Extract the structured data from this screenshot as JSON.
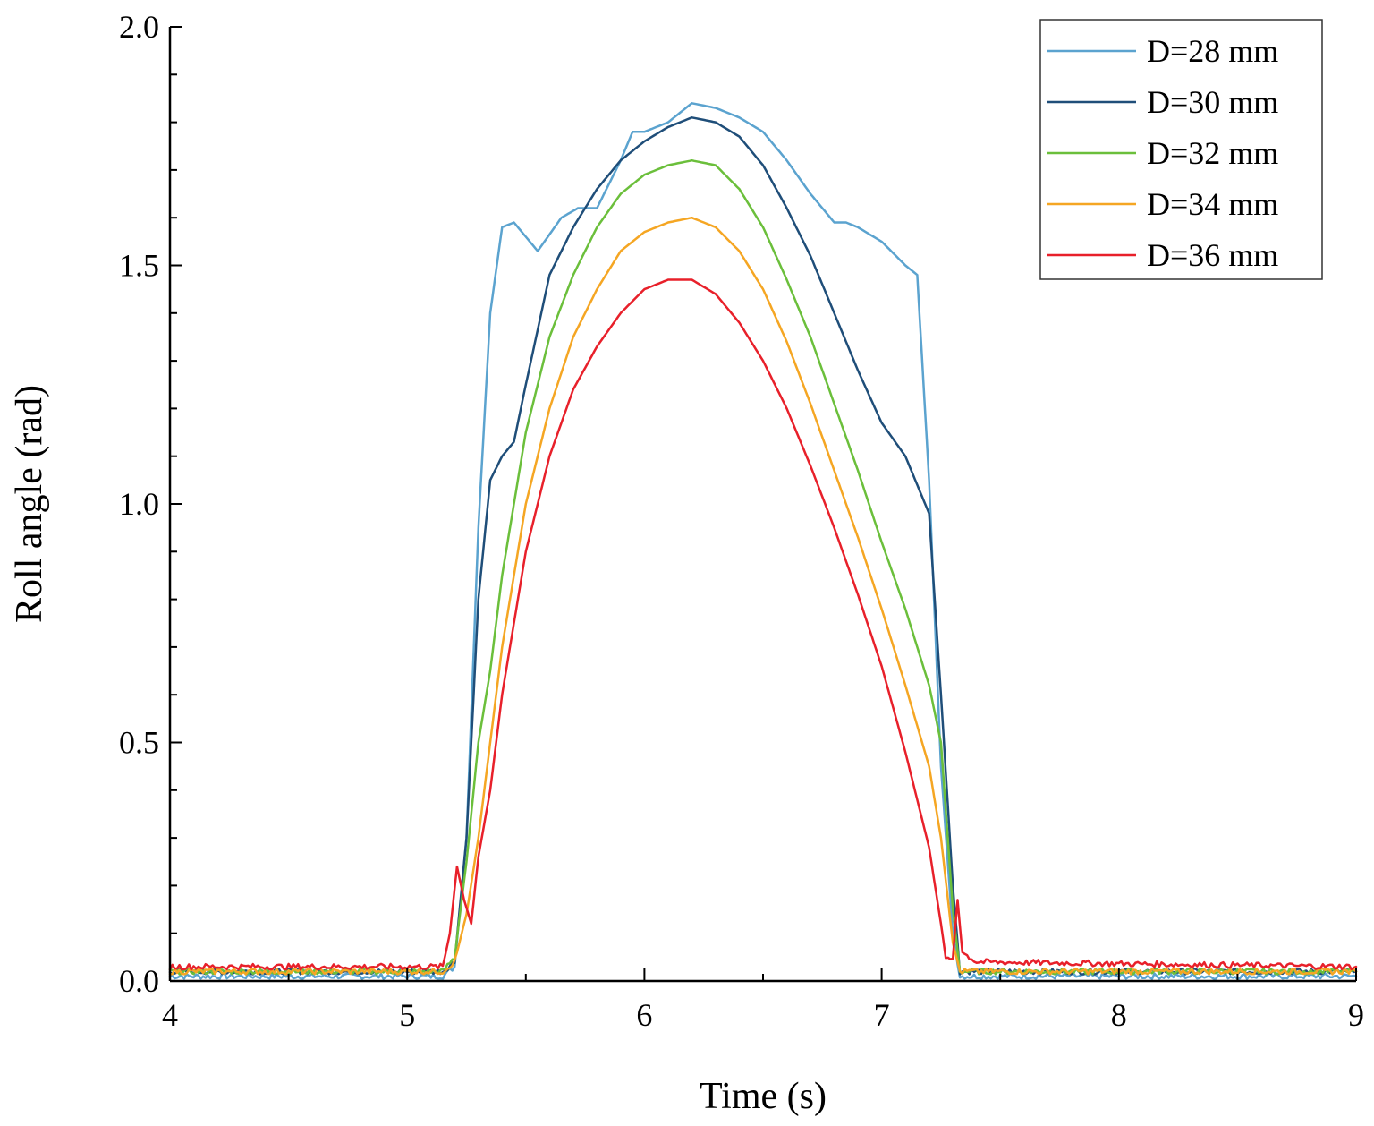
{
  "chart_data": {
    "type": "line",
    "title": "",
    "xlabel": "Time (s)",
    "ylabel": "Roll angle (rad)",
    "xlim": [
      4,
      9
    ],
    "ylim": [
      0,
      2
    ],
    "xticks": [
      4,
      5,
      6,
      7,
      8,
      9
    ],
    "xtick_labels": [
      "4",
      "5",
      "6",
      "7",
      "8",
      "9"
    ],
    "yticks": [
      0,
      0.5,
      1.0,
      1.5,
      2.0
    ],
    "ytick_labels": [
      "0.0",
      "0.5",
      "1.0",
      "1.5",
      "2.0"
    ],
    "grid": false,
    "legend_position": "top-right",
    "series": [
      {
        "name": "D=28 mm",
        "color": "#5BA3CF",
        "x": [
          4.0,
          5.15,
          5.2,
          5.25,
          5.3,
          5.35,
          5.4,
          5.45,
          5.55,
          5.65,
          5.72,
          5.8,
          5.9,
          5.95,
          6.0,
          6.1,
          6.2,
          6.3,
          6.4,
          6.5,
          6.6,
          6.7,
          6.8,
          6.85,
          6.9,
          7.0,
          7.1,
          7.15,
          7.2,
          7.25,
          7.3,
          7.33,
          9.0
        ],
        "y": [
          0.01,
          0.01,
          0.03,
          0.3,
          0.95,
          1.4,
          1.58,
          1.59,
          1.53,
          1.6,
          1.62,
          1.62,
          1.72,
          1.78,
          1.78,
          1.8,
          1.84,
          1.83,
          1.81,
          1.78,
          1.72,
          1.65,
          1.59,
          1.59,
          1.58,
          1.55,
          1.5,
          1.48,
          1.05,
          0.45,
          0.1,
          0.01,
          0.01
        ]
      },
      {
        "name": "D=30 mm",
        "color": "#1F4E79",
        "x": [
          4.0,
          5.15,
          5.2,
          5.25,
          5.3,
          5.35,
          5.4,
          5.45,
          5.5,
          5.6,
          5.7,
          5.8,
          5.9,
          6.0,
          6.1,
          6.2,
          6.3,
          6.4,
          6.5,
          6.6,
          6.7,
          6.8,
          6.9,
          7.0,
          7.1,
          7.2,
          7.25,
          7.3,
          7.33,
          9.0
        ],
        "y": [
          0.02,
          0.02,
          0.04,
          0.3,
          0.8,
          1.05,
          1.1,
          1.13,
          1.25,
          1.48,
          1.58,
          1.66,
          1.72,
          1.76,
          1.79,
          1.81,
          1.8,
          1.77,
          1.71,
          1.62,
          1.52,
          1.4,
          1.28,
          1.17,
          1.1,
          0.98,
          0.6,
          0.2,
          0.02,
          0.02
        ]
      },
      {
        "name": "D=32 mm",
        "color": "#6BBF3B",
        "x": [
          4.0,
          5.15,
          5.2,
          5.25,
          5.3,
          5.35,
          5.4,
          5.5,
          5.6,
          5.7,
          5.8,
          5.9,
          6.0,
          6.1,
          6.2,
          6.3,
          6.4,
          6.5,
          6.6,
          6.7,
          6.8,
          6.9,
          7.0,
          7.1,
          7.2,
          7.25,
          7.3,
          7.33,
          9.0
        ],
        "y": [
          0.02,
          0.02,
          0.05,
          0.25,
          0.5,
          0.65,
          0.85,
          1.15,
          1.35,
          1.48,
          1.58,
          1.65,
          1.69,
          1.71,
          1.72,
          1.71,
          1.66,
          1.58,
          1.47,
          1.35,
          1.21,
          1.07,
          0.92,
          0.78,
          0.62,
          0.5,
          0.15,
          0.02,
          0.02
        ]
      },
      {
        "name": "D=34 mm",
        "color": "#F5A623",
        "x": [
          4.0,
          5.15,
          5.2,
          5.25,
          5.3,
          5.35,
          5.4,
          5.5,
          5.6,
          5.7,
          5.8,
          5.9,
          6.0,
          6.1,
          6.2,
          6.3,
          6.4,
          6.5,
          6.6,
          6.7,
          6.8,
          6.9,
          7.0,
          7.1,
          7.2,
          7.25,
          7.3,
          7.33,
          9.0
        ],
        "y": [
          0.02,
          0.02,
          0.04,
          0.14,
          0.3,
          0.5,
          0.7,
          1.0,
          1.2,
          1.35,
          1.45,
          1.53,
          1.57,
          1.59,
          1.6,
          1.58,
          1.53,
          1.45,
          1.34,
          1.21,
          1.07,
          0.93,
          0.78,
          0.62,
          0.45,
          0.3,
          0.08,
          0.02,
          0.02
        ]
      },
      {
        "name": "D=36 mm",
        "color": "#E8202A",
        "x": [
          4.0,
          5.15,
          5.18,
          5.21,
          5.24,
          5.27,
          5.3,
          5.35,
          5.4,
          5.5,
          5.6,
          5.7,
          5.8,
          5.9,
          6.0,
          6.1,
          6.2,
          6.3,
          6.4,
          6.5,
          6.6,
          6.7,
          6.8,
          6.9,
          7.0,
          7.1,
          7.15,
          7.2,
          7.25,
          7.27,
          7.3,
          7.32,
          7.34,
          7.4,
          9.0
        ],
        "y": [
          0.03,
          0.03,
          0.1,
          0.24,
          0.17,
          0.12,
          0.26,
          0.4,
          0.6,
          0.9,
          1.1,
          1.24,
          1.33,
          1.4,
          1.45,
          1.47,
          1.47,
          1.44,
          1.38,
          1.3,
          1.2,
          1.08,
          0.95,
          0.81,
          0.66,
          0.48,
          0.38,
          0.28,
          0.12,
          0.05,
          0.05,
          0.17,
          0.06,
          0.04,
          0.03
        ]
      }
    ]
  }
}
